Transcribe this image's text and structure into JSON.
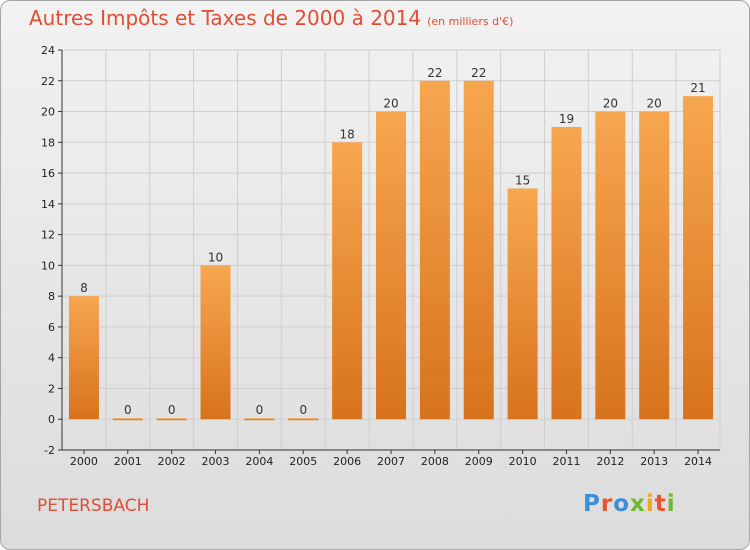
{
  "page": {
    "title": "Autres Impôts et Taxes de 2000 à 2014",
    "title_unit": "(en milliers d'€)",
    "commune": "PETERSBACH",
    "logo": {
      "text": "Proxiti",
      "letters": [
        "P",
        "r",
        "o",
        "x",
        "i",
        "t",
        "i"
      ],
      "colors": [
        "#3a8fd6",
        "#e8542d",
        "#3a8fd6",
        "#6fb92e",
        "#f2a81b",
        "#e8542d",
        "#6fb92e"
      ]
    }
  },
  "colors": {
    "title": "#de4f36",
    "bar_light": "#f7a650",
    "bar_dark": "#d8731d",
    "grid": "#cfcfcf"
  },
  "chart_data": {
    "type": "bar",
    "title": "Autres Impôts et Taxes de 2000 à 2014",
    "subtitle": "(en milliers d'€)",
    "categories": [
      "2000",
      "2001",
      "2002",
      "2003",
      "2004",
      "2005",
      "2006",
      "2007",
      "2008",
      "2009",
      "2010",
      "2011",
      "2012",
      "2013",
      "2014"
    ],
    "values": [
      8,
      0,
      0,
      10,
      0,
      0,
      18,
      20,
      22,
      22,
      15,
      19,
      20,
      20,
      21
    ],
    "ylim": [
      -2,
      24
    ],
    "yticks": [
      -2,
      0,
      2,
      4,
      6,
      8,
      10,
      12,
      14,
      16,
      18,
      20,
      22,
      24
    ],
    "grid": true,
    "xlabel": "",
    "ylabel": ""
  }
}
